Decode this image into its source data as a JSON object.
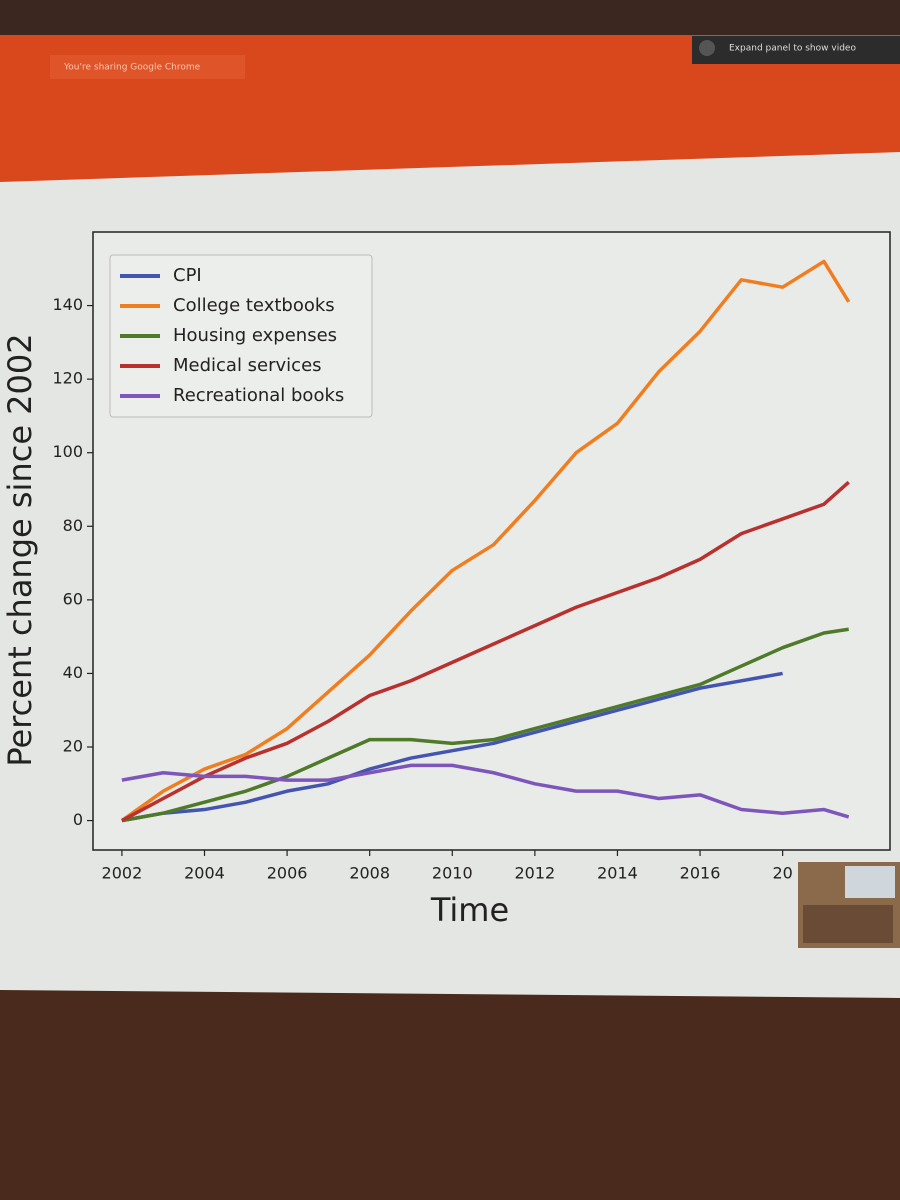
{
  "screen_share": {
    "sharing_notice": "You're sharing Google Chrome",
    "expand_button": "Expand panel to show video"
  },
  "chart_data": {
    "type": "line",
    "x_label": "Time",
    "y_label": "Percent change since 2002",
    "x": [
      2002,
      2003,
      2004,
      2005,
      2006,
      2007,
      2008,
      2009,
      2010,
      2011,
      2012,
      2013,
      2014,
      2015,
      2016,
      2017,
      2018,
      2019,
      2019.6
    ],
    "series": [
      {
        "name": "CPI",
        "color": "#4455b0",
        "values": [
          0,
          2,
          3,
          5,
          8,
          10,
          14,
          17,
          19,
          21,
          24,
          27,
          30,
          33,
          36,
          38,
          40,
          null,
          null
        ]
      },
      {
        "name": "College textbooks",
        "color": "#f07d20",
        "values": [
          0,
          8,
          14,
          18,
          25,
          35,
          45,
          57,
          68,
          75,
          87,
          100,
          108,
          122,
          133,
          147,
          145,
          152,
          141
        ]
      },
      {
        "name": "Housing expenses",
        "color": "#4e7a2a",
        "values": [
          0,
          2,
          5,
          8,
          12,
          17,
          22,
          22,
          21,
          22,
          25,
          28,
          31,
          34,
          37,
          42,
          47,
          51,
          52
        ]
      },
      {
        "name": "Medical services",
        "color": "#b8312f",
        "values": [
          0,
          6,
          12,
          17,
          21,
          27,
          34,
          38,
          43,
          48,
          53,
          58,
          62,
          66,
          71,
          78,
          82,
          86,
          92
        ]
      },
      {
        "name": "Recreational books",
        "color": "#7e55bb",
        "values": [
          11,
          13,
          12,
          12,
          11,
          11,
          13,
          15,
          15,
          13,
          10,
          8,
          8,
          6,
          7,
          3,
          2,
          3,
          1
        ]
      }
    ],
    "xlim": [
      2001.3,
      2020.6
    ],
    "ylim": [
      -8,
      160
    ],
    "xticks": [
      2002,
      2004,
      2006,
      2008,
      2010,
      2012,
      2014,
      2016,
      {
        "value": 2018,
        "label": "20"
      }
    ],
    "yticks": [
      0,
      20,
      40,
      60,
      80,
      100,
      120,
      140
    ],
    "grid": false,
    "legend": "upper-left"
  }
}
